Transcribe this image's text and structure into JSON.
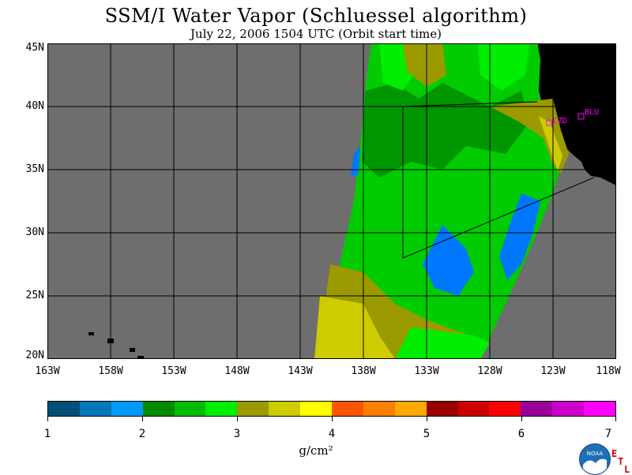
{
  "title": "SSM/I Water Vapor (Schluessel algorithm)",
  "subtitle": "July 22, 2006  1504 UTC  (Orbit start time)",
  "lat_labels": [
    "45N",
    "40N",
    "35N",
    "30N",
    "25N",
    "20N"
  ],
  "lon_labels": [
    "163W",
    "158W",
    "153W",
    "148W",
    "143W",
    "138W",
    "133W",
    "128W",
    "123W",
    "118W"
  ],
  "stations": [
    "CZD",
    "BLU"
  ],
  "colorbar": {
    "colors": [
      "#00507a",
      "#0077b8",
      "#0099ff",
      "#008a00",
      "#00bb00",
      "#00ee00",
      "#9a9a00",
      "#cccc00",
      "#ffff00",
      "#ff5500",
      "#ff7f00",
      "#ffaa00",
      "#990000",
      "#cc0000",
      "#ff0000",
      "#990099",
      "#cc00cc",
      "#ff00ff"
    ],
    "tick_labels": [
      "1",
      "2",
      "3",
      "4",
      "5",
      "6",
      "7"
    ]
  },
  "units": "g/cm²",
  "colors": {
    "missing": "#6e6e6e",
    "land": "#000000",
    "station_marker": "#ff00ff"
  },
  "logo": {
    "name": "noaa-logo",
    "text": "NOAA",
    "mark": [
      "E",
      "T",
      "L"
    ]
  }
}
